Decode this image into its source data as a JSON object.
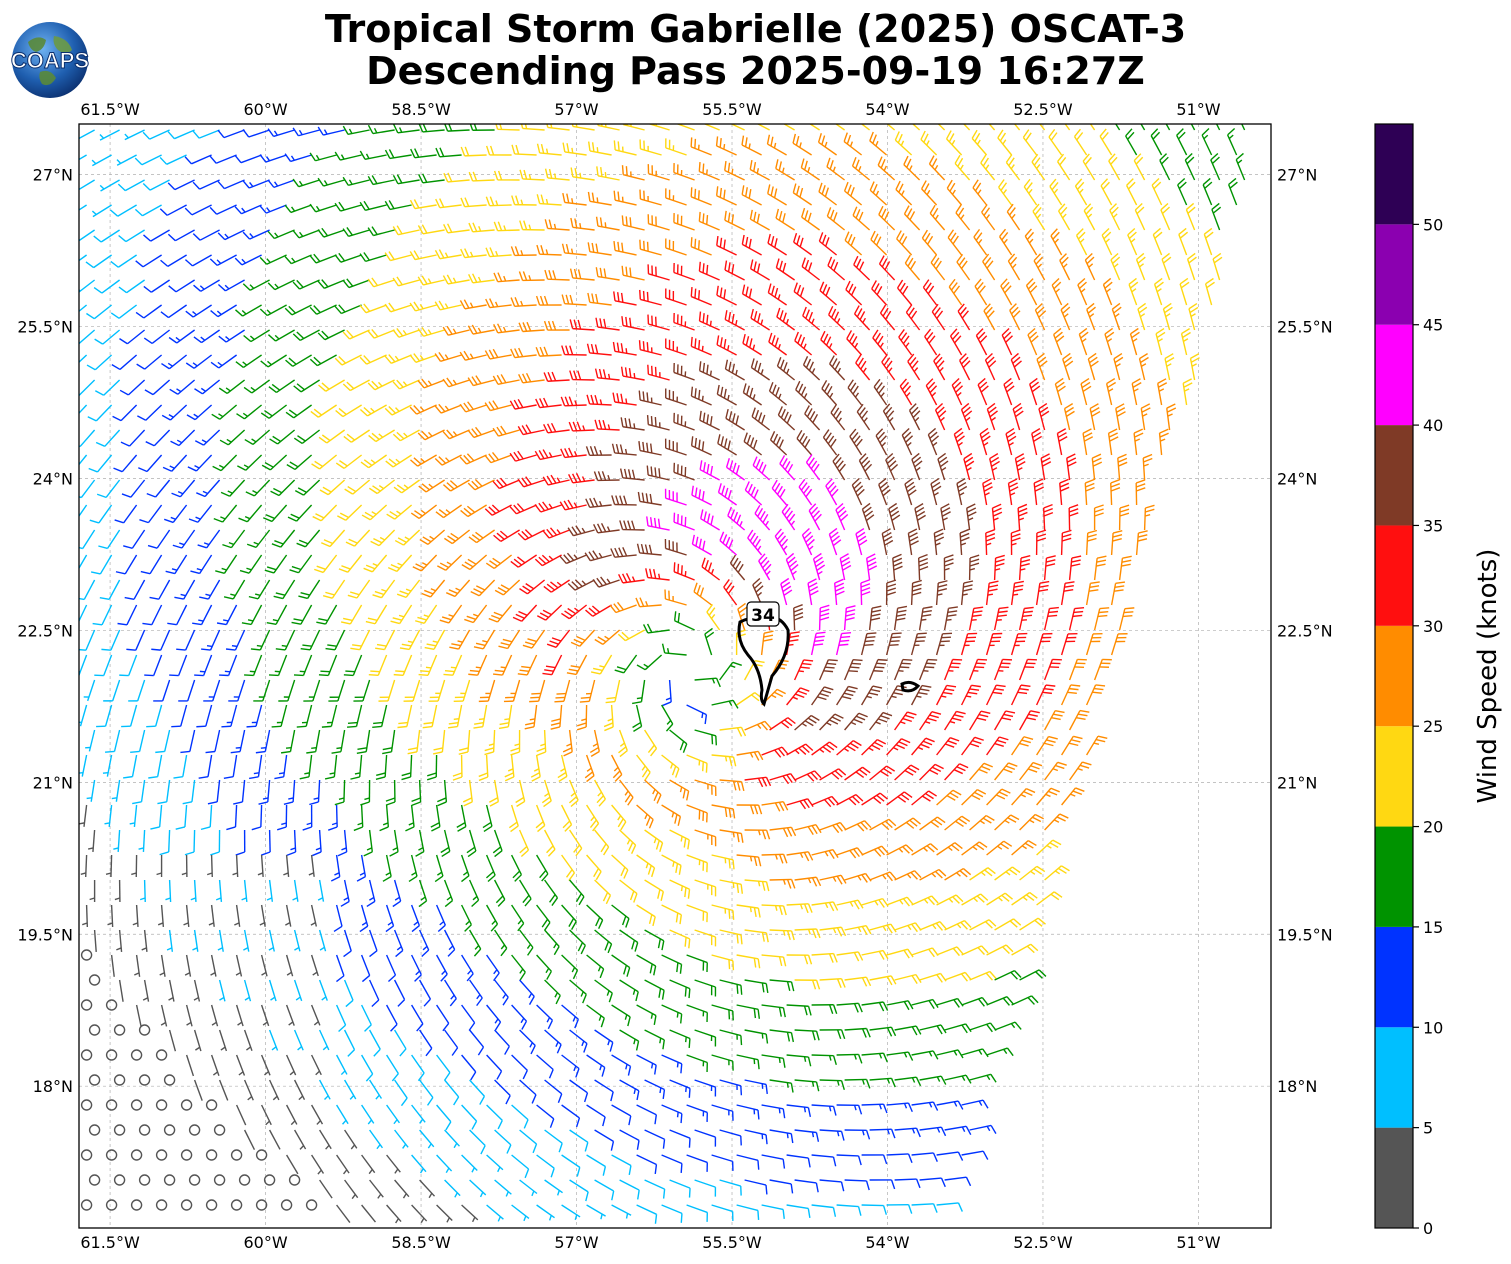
{
  "title": {
    "line1": "Tropical Storm Gabrielle (2025) OSCAT-3",
    "line2": "Descending Pass 2025-09-19 16:27Z"
  },
  "logo": {
    "text": "COAPS",
    "icon": "globe-logo-icon"
  },
  "map": {
    "lon_range": [
      -61.8,
      -50.3
    ],
    "lat_range": [
      16.6,
      27.5
    ],
    "lon_ticks": [
      "61.5°W",
      "60°W",
      "58.5°W",
      "57°W",
      "55.5°W",
      "54°W",
      "52.5°W",
      "51°W"
    ],
    "lon_tick_values": [
      -61.5,
      -60,
      -58.5,
      -57,
      -55.5,
      -54,
      -52.5,
      -51
    ],
    "lat_ticks": [
      "27°N",
      "25.5°N",
      "24°N",
      "22.5°N",
      "21°N",
      "19.5°N",
      "18°N"
    ],
    "lat_tick_values": [
      27,
      25.5,
      24,
      22.5,
      21,
      19.5,
      18
    ],
    "grid": true,
    "storm_center": {
      "lon": -55.9,
      "lat": 22.1
    },
    "contour_label": "34"
  },
  "colorbar": {
    "label": "Wind Speed (knots)",
    "ticks": [
      "0",
      "5",
      "10",
      "15",
      "20",
      "25",
      "30",
      "35",
      "40",
      "45",
      "50"
    ],
    "bins": [
      {
        "min": 0,
        "max": 5,
        "color": "#555555"
      },
      {
        "min": 5,
        "max": 10,
        "color": "#00bfff"
      },
      {
        "min": 10,
        "max": 15,
        "color": "#0033ff"
      },
      {
        "min": 15,
        "max": 20,
        "color": "#009300"
      },
      {
        "min": 20,
        "max": 25,
        "color": "#ffd812"
      },
      {
        "min": 25,
        "max": 30,
        "color": "#ff8c00"
      },
      {
        "min": 30,
        "max": 35,
        "color": "#ff0f0f"
      },
      {
        "min": 35,
        "max": 40,
        "color": "#7f3a26"
      },
      {
        "min": 40,
        "max": 45,
        "color": "#ff00ff"
      },
      {
        "min": 45,
        "max": 50,
        "color": "#8b00b0"
      },
      {
        "min": 50,
        "max": 55,
        "color": "#2e0055"
      }
    ]
  }
}
